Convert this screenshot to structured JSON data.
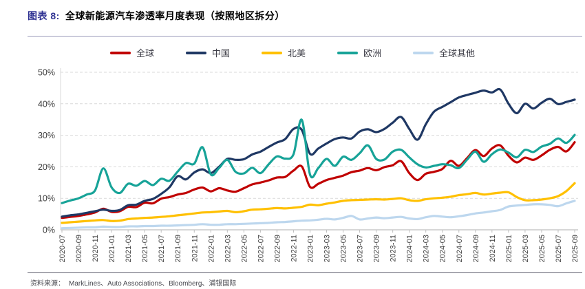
{
  "header": {
    "prefix": "图表 8:",
    "title": "全球新能源汽车渗透率月度表现（按照地区拆分）"
  },
  "footer": {
    "source_label": "资料来源：",
    "source_text": "MarkLines、Auto Associations、Bloomberg、浦银国际"
  },
  "chart_data": {
    "type": "line",
    "title": "全球新能源汽车渗透率月度表现（按照地区拆分）",
    "xlabel": "",
    "ylabel": "",
    "ylim": [
      0,
      50
    ],
    "yticks": [
      "0%",
      "10%",
      "20%",
      "30%",
      "40%",
      "50%"
    ],
    "xtick_every": 2,
    "grid": "dashed-horizontal",
    "legend_position": "top",
    "x": [
      "2020-07",
      "2020-08",
      "2020-09",
      "2020-10",
      "2020-11",
      "2020-12",
      "2021-01",
      "2021-02",
      "2021-03",
      "2021-04",
      "2021-05",
      "2021-06",
      "2021-07",
      "2021-08",
      "2021-09",
      "2021-10",
      "2021-11",
      "2021-12",
      "2022-01",
      "2022-02",
      "2022-03",
      "2022-04",
      "2022-05",
      "2022-06",
      "2022-07",
      "2022-08",
      "2022-09",
      "2022-10",
      "2022-11",
      "2022-12",
      "2023-01",
      "2023-02",
      "2023-03",
      "2023-04",
      "2023-05",
      "2023-06",
      "2023-07",
      "2023-08",
      "2023-09",
      "2023-10",
      "2023-11",
      "2023-12",
      "2024-01",
      "2024-02",
      "2024-03",
      "2024-04",
      "2024-05",
      "2024-06",
      "2024-07",
      "2024-08",
      "2024-09",
      "2024-10",
      "2024-11",
      "2024-12",
      "2025-01",
      "2025-02",
      "2025-03",
      "2025-04",
      "2025-05",
      "2025-06",
      "2025-07",
      "2025-08",
      "2025-09"
    ],
    "series": [
      {
        "name": "全球",
        "color": "#c00000",
        "values": [
          3.8,
          4.1,
          4.4,
          4.9,
          5.5,
          6.7,
          5.7,
          5.9,
          7.3,
          7.2,
          8.6,
          8.4,
          9.9,
          10.4,
          11.2,
          11.7,
          12.8,
          13.4,
          12.2,
          13.2,
          12.5,
          12.1,
          13.2,
          14.4,
          15.0,
          15.7,
          16.6,
          16.8,
          18.8,
          20.1,
          13.6,
          14.6,
          15.8,
          16.5,
          17.2,
          18.3,
          18.8,
          19.6,
          18.9,
          19.9,
          20.5,
          21.8,
          18.0,
          15.8,
          17.8,
          18.4,
          19.3,
          21.9,
          20.3,
          22.8,
          25.3,
          23.4,
          25.8,
          26.8,
          23.5,
          21.4,
          22.9,
          22.2,
          23.6,
          25.4,
          26.3,
          24.9,
          27.8
        ]
      },
      {
        "name": "中国",
        "color": "#1f3864",
        "values": [
          4.2,
          4.6,
          4.9,
          5.4,
          5.9,
          6.4,
          6.0,
          6.3,
          7.8,
          8.0,
          9.2,
          9.8,
          11.4,
          13.5,
          17.0,
          16.0,
          18.2,
          19.2,
          18.0,
          20.0,
          22.5,
          22.2,
          22.4,
          23.9,
          24.8,
          26.3,
          27.7,
          28.8,
          32.0,
          31.7,
          24.1,
          25.8,
          27.4,
          28.8,
          29.3,
          29.0,
          31.2,
          31.9,
          31.0,
          32.0,
          34.0,
          35.8,
          32.0,
          28.6,
          33.5,
          37.5,
          39.0,
          40.5,
          42.0,
          42.8,
          43.5,
          44.2,
          43.6,
          44.5,
          40.0,
          37.0,
          40.0,
          38.5,
          40.3,
          41.6,
          39.9,
          40.6,
          41.3
        ]
      },
      {
        "name": "北美",
        "color": "#ffc000",
        "values": [
          2.2,
          2.4,
          2.6,
          2.8,
          3.0,
          3.1,
          2.8,
          2.9,
          3.4,
          3.6,
          3.8,
          3.9,
          4.1,
          4.3,
          4.6,
          4.9,
          5.2,
          5.5,
          5.6,
          5.8,
          6.0,
          5.6,
          5.9,
          6.4,
          6.5,
          6.7,
          6.9,
          6.8,
          7.0,
          7.3,
          8.0,
          7.8,
          8.3,
          8.7,
          9.2,
          9.4,
          9.5,
          9.6,
          9.7,
          9.6,
          9.8,
          10.0,
          9.4,
          9.2,
          9.7,
          10.0,
          10.2,
          10.5,
          11.0,
          11.3,
          11.7,
          11.2,
          11.5,
          11.8,
          11.9,
          10.4,
          9.4,
          9.4,
          9.6,
          10.0,
          10.7,
          12.3,
          14.8
        ]
      },
      {
        "name": "欧洲",
        "color": "#17a398",
        "values": [
          8.5,
          9.3,
          10.0,
          11.2,
          12.5,
          19.5,
          13.5,
          11.7,
          14.6,
          14.0,
          15.5,
          14.2,
          16.2,
          15.6,
          18.5,
          21.2,
          21.0,
          26.2,
          17.6,
          19.6,
          22.2,
          18.4,
          17.9,
          19.7,
          18.0,
          20.8,
          23.3,
          22.6,
          24.0,
          34.9,
          17.5,
          19.6,
          22.5,
          20.3,
          23.2,
          22.2,
          24.3,
          26.8,
          22.5,
          22.3,
          24.8,
          25.4,
          23.0,
          20.8,
          19.8,
          20.3,
          20.8,
          20.5,
          19.6,
          22.3,
          24.8,
          21.6,
          24.0,
          25.5,
          24.5,
          23.0,
          25.4,
          24.7,
          26.4,
          27.3,
          29.0,
          27.6,
          30.1
        ]
      },
      {
        "name": "全球其他",
        "color": "#bdd7ee",
        "values": [
          0.5,
          0.6,
          0.7,
          0.8,
          0.8,
          1.0,
          0.9,
          0.9,
          1.1,
          1.1,
          1.2,
          1.2,
          1.3,
          1.3,
          1.4,
          1.5,
          1.6,
          1.8,
          1.6,
          1.6,
          1.8,
          1.8,
          1.9,
          2.0,
          2.1,
          2.2,
          2.4,
          2.5,
          2.7,
          2.9,
          3.0,
          3.2,
          3.5,
          3.3,
          3.8,
          4.4,
          3.3,
          3.6,
          3.9,
          3.7,
          3.9,
          4.1,
          3.6,
          3.4,
          4.0,
          4.4,
          4.2,
          4.0,
          4.3,
          4.7,
          5.2,
          5.5,
          5.9,
          6.3,
          7.4,
          7.7,
          7.9,
          8.1,
          8.1,
          7.9,
          7.5,
          8.4,
          9.2
        ]
      }
    ],
    "style": {
      "grid_color": "#d9d9d9",
      "axis_color": "#bfbfbf",
      "tick_label_color": "#404040",
      "line_width": 3.2
    }
  }
}
